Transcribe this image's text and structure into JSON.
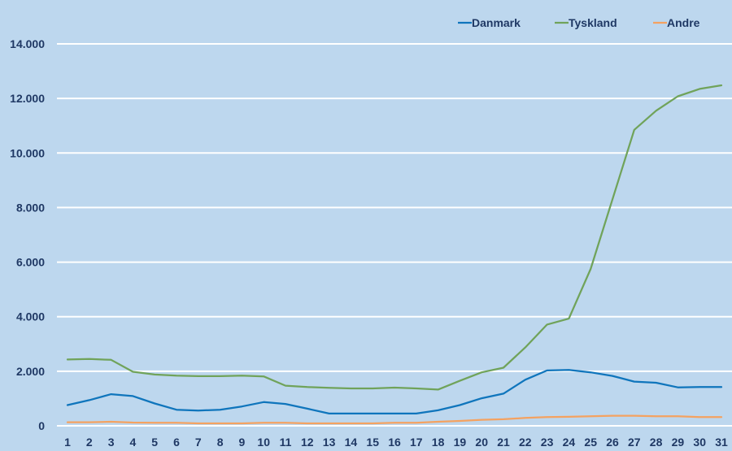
{
  "chart_data": {
    "type": "line",
    "title": "",
    "xlabel": "",
    "ylabel": "",
    "ylim": [
      0,
      14000
    ],
    "yticks": [
      0,
      2000,
      4000,
      6000,
      8000,
      10000,
      12000,
      14000
    ],
    "ytick_labels": [
      "0",
      "2.000",
      "4.000",
      "6.000",
      "8.000",
      "10.000",
      "12.000",
      "14.000"
    ],
    "grid": true,
    "legend_position": "top-right",
    "background_color": "#bdd7ee",
    "x": [
      1,
      2,
      3,
      4,
      5,
      6,
      7,
      8,
      9,
      10,
      11,
      12,
      13,
      14,
      15,
      16,
      17,
      18,
      19,
      20,
      21,
      22,
      23,
      24,
      25,
      26,
      27,
      28,
      29,
      30,
      31
    ],
    "series": [
      {
        "name": "Danmark",
        "color": "#0f75bc",
        "values": [
          760,
          940,
          1160,
          1090,
          820,
          590,
          560,
          590,
          710,
          870,
          800,
          630,
          450,
          450,
          450,
          450,
          450,
          570,
          760,
          1010,
          1180,
          1690,
          2030,
          2050,
          1960,
          1830,
          1620,
          1580,
          1410,
          1420,
          1420
        ]
      },
      {
        "name": "Tyskland",
        "color": "#70a35a",
        "values": [
          2430,
          2450,
          2420,
          1980,
          1880,
          1840,
          1820,
          1820,
          1840,
          1810,
          1470,
          1420,
          1390,
          1370,
          1370,
          1400,
          1370,
          1330,
          1650,
          1960,
          2130,
          2870,
          3710,
          3930,
          5750,
          8300,
          10850,
          11550,
          12080,
          12350,
          12480
        ]
      },
      {
        "name": "Andre",
        "color": "#f4a261",
        "values": [
          130,
          130,
          150,
          120,
          110,
          110,
          90,
          90,
          90,
          110,
          110,
          90,
          90,
          90,
          90,
          110,
          110,
          150,
          180,
          220,
          240,
          290,
          320,
          330,
          350,
          370,
          370,
          350,
          350,
          320,
          320
        ]
      }
    ]
  }
}
